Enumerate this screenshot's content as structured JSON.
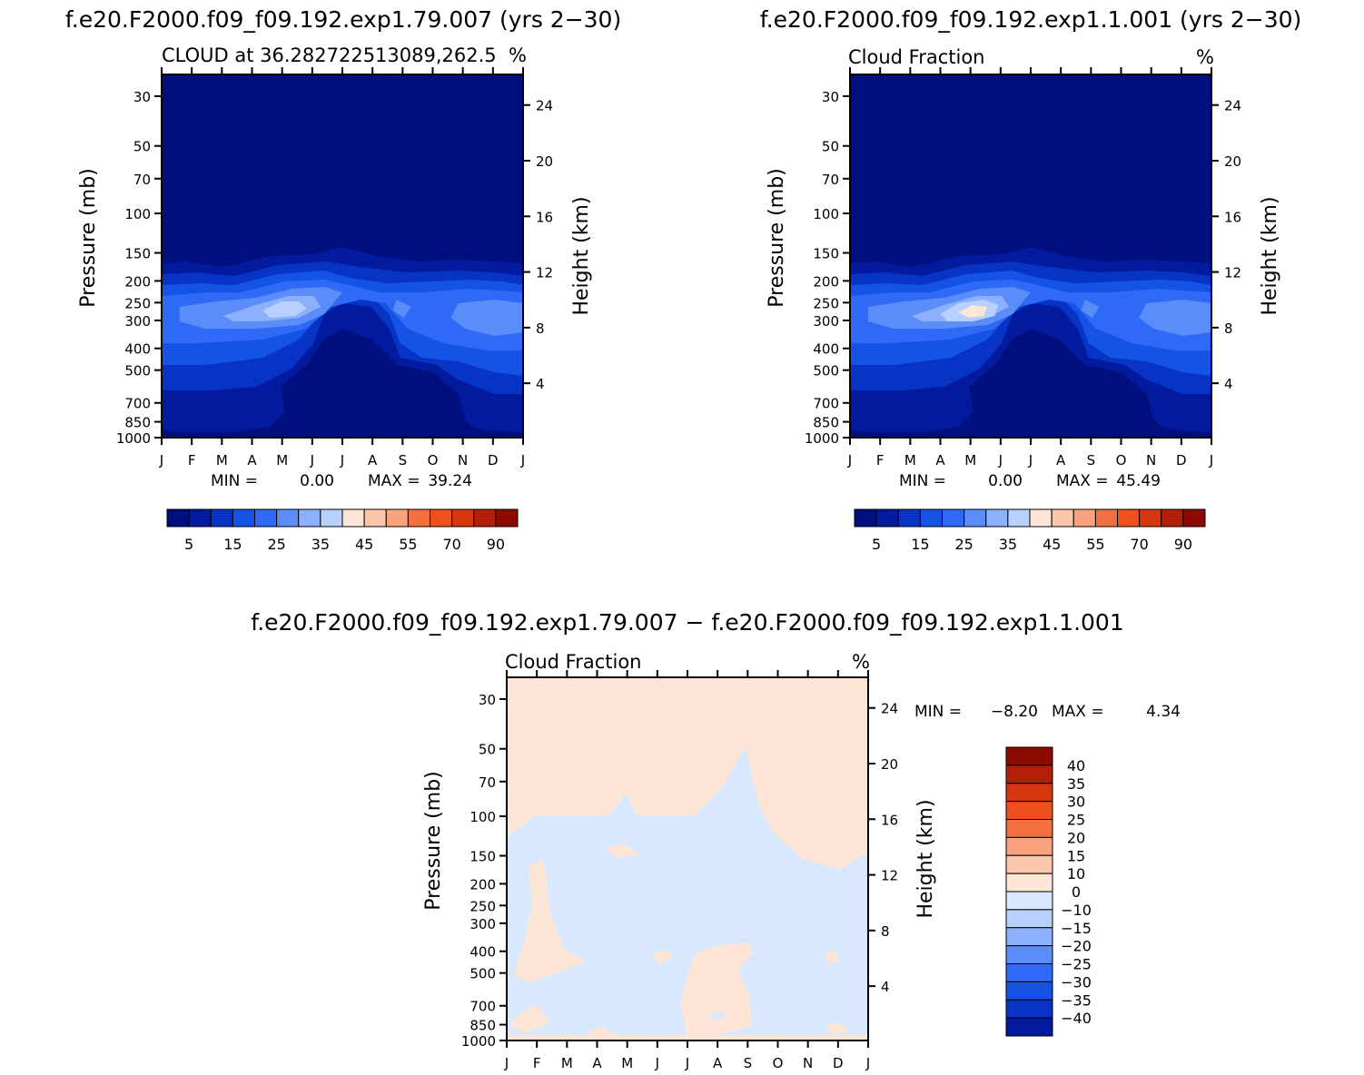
{
  "chart_data": [
    {
      "type": "contour",
      "title": "f.e20.F2000.f09_f09.192.exp1.79.007 (yrs 2−30)",
      "subtitle": "CLOUD at 36.282722513089,262.5",
      "units": "%",
      "ylabel": "Pressure (mb)",
      "ylabel_right": "Height (km)",
      "x_ticks": [
        "J",
        "F",
        "M",
        "A",
        "M",
        "J",
        "J",
        "A",
        "S",
        "O",
        "N",
        "D",
        "J"
      ],
      "y_ticks": [
        "30",
        "50",
        "70",
        "100",
        "150",
        "200",
        "250",
        "300",
        "400",
        "500",
        "700",
        "850",
        "1000"
      ],
      "y_right_ticks": [
        "24",
        "20",
        "16",
        "12",
        "8",
        "4"
      ],
      "min_label": "MIN =",
      "min_value": "0.00",
      "max_label": "MAX =",
      "max_value": "39.24",
      "colorbar_labels": [
        "5",
        "15",
        "25",
        "35",
        "45",
        "55",
        "70",
        "90"
      ],
      "contour_levels": [
        5,
        10,
        15,
        20,
        25,
        30,
        35,
        40,
        45,
        50,
        55,
        60,
        70,
        80,
        90
      ]
    },
    {
      "type": "contour",
      "title": "f.e20.F2000.f09_f09.192.exp1.1.001 (yrs 2−30)",
      "subtitle": "Cloud Fraction",
      "units": "%",
      "ylabel": "Pressure (mb)",
      "ylabel_right": "Height (km)",
      "x_ticks": [
        "J",
        "F",
        "M",
        "A",
        "M",
        "J",
        "J",
        "A",
        "S",
        "O",
        "N",
        "D",
        "J"
      ],
      "y_ticks": [
        "30",
        "50",
        "70",
        "100",
        "150",
        "200",
        "250",
        "300",
        "400",
        "500",
        "700",
        "850",
        "1000"
      ],
      "y_right_ticks": [
        "24",
        "20",
        "16",
        "12",
        "8",
        "4"
      ],
      "min_label": "MIN =",
      "min_value": "0.00",
      "max_label": "MAX =",
      "max_value": "45.49",
      "colorbar_labels": [
        "5",
        "15",
        "25",
        "35",
        "45",
        "55",
        "70",
        "90"
      ],
      "contour_levels": [
        5,
        10,
        15,
        20,
        25,
        30,
        35,
        40,
        45,
        50,
        55,
        60,
        70,
        80,
        90
      ]
    },
    {
      "type": "contour",
      "title": "f.e20.F2000.f09_f09.192.exp1.79.007 − f.e20.F2000.f09_f09.192.exp1.1.001",
      "subtitle": "Cloud Fraction",
      "units": "%",
      "ylabel": "Pressure (mb)",
      "ylabel_right": "Height (km)",
      "x_ticks": [
        "J",
        "F",
        "M",
        "A",
        "M",
        "J",
        "J",
        "A",
        "S",
        "O",
        "N",
        "D",
        "J"
      ],
      "y_ticks": [
        "30",
        "50",
        "70",
        "100",
        "150",
        "200",
        "250",
        "300",
        "400",
        "500",
        "700",
        "850",
        "1000"
      ],
      "y_right_ticks": [
        "24",
        "20",
        "16",
        "12",
        "8",
        "4"
      ],
      "min_label": "MIN =",
      "min_value": "−8.20",
      "max_label": "MAX =",
      "max_value": "4.34",
      "colorbar_labels": [
        "40",
        "35",
        "30",
        "25",
        "20",
        "15",
        "10",
        "0",
        "−10",
        "−15",
        "−20",
        "−25",
        "−30",
        "−35",
        "−40"
      ]
    }
  ],
  "palette": {
    "levels": [
      "#000e7e",
      "#021a9e",
      "#0734c4",
      "#1552e6",
      "#2e6af5",
      "#5a8df8",
      "#8cb0fb",
      "#b8d0fd",
      "#d8e8ff",
      "#fde6d6",
      "#fcc6aa",
      "#faa27e",
      "#f5703f",
      "#ef4f1c",
      "#d8360e",
      "#b41f08",
      "#8c0a00"
    ],
    "diff_positive": "#fde6d6",
    "diff_negative": "#d8e8ff"
  }
}
